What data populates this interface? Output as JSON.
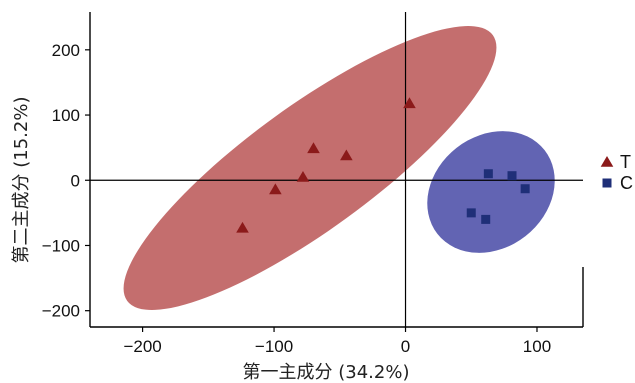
{
  "chart_data": {
    "type": "scatter",
    "title": "",
    "xlabel": "第一主成分 (34.2%)",
    "ylabel": "第二主成分 (15.2%)",
    "xlim": [
      -240,
      135
    ],
    "ylim": [
      -225,
      258
    ],
    "x_ticks": [
      -200,
      -100,
      0,
      100
    ],
    "x_tick_labels": [
      "−200",
      "−100",
      "0",
      "100"
    ],
    "y_ticks": [
      -200,
      -100,
      0,
      100,
      200
    ],
    "y_tick_labels": [
      "−200",
      "−100",
      "0",
      "100",
      "200"
    ],
    "grid": false,
    "zero_lines": true,
    "legend_position": "right",
    "series": [
      {
        "name": "T",
        "marker": "triangle",
        "color": "#8b1a1a",
        "ellipse_color": "#c46e6e",
        "points": [
          {
            "x": -124,
            "y": -73
          },
          {
            "x": -99,
            "y": -14
          },
          {
            "x": -78,
            "y": 5
          },
          {
            "x": -70,
            "y": 49
          },
          {
            "x": -45,
            "y": 38
          },
          {
            "x": 3,
            "y": 118
          }
        ]
      },
      {
        "name": "C",
        "marker": "square",
        "color": "#1f2f78",
        "ellipse_color": "#6264b3",
        "points": [
          {
            "x": 50,
            "y": -50
          },
          {
            "x": 61,
            "y": -60
          },
          {
            "x": 63,
            "y": 10
          },
          {
            "x": 81,
            "y": 7
          },
          {
            "x": 91,
            "y": -13
          }
        ]
      }
    ]
  }
}
